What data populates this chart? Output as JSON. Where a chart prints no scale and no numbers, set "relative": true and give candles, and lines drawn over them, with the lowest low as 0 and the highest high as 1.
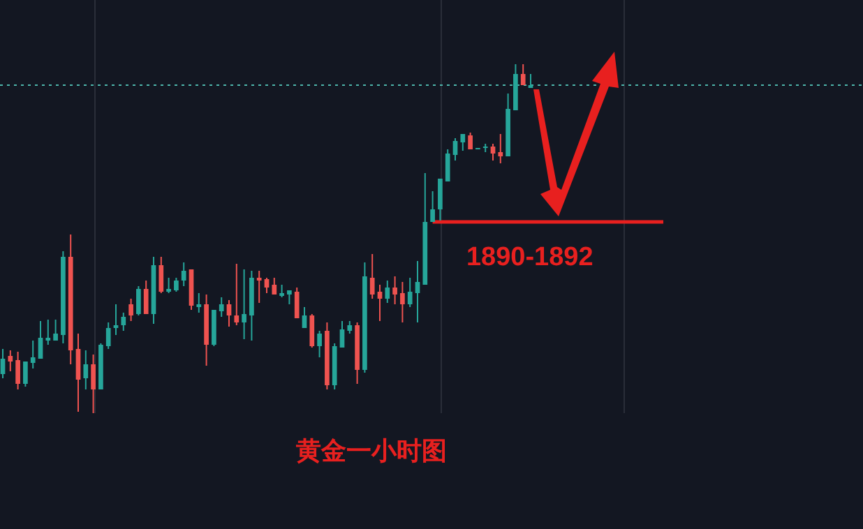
{
  "chart_data": {
    "type": "candlestick",
    "title": "黄金一小时图",
    "relative": true,
    "categories": [
      null,
      null,
      null,
      null,
      null,
      null,
      null,
      null,
      null,
      null,
      null,
      null,
      null,
      null,
      null,
      null,
      null,
      null,
      null,
      null,
      null,
      null,
      null,
      null,
      null,
      null,
      null,
      null,
      null,
      null,
      null,
      null,
      null,
      null,
      null,
      null,
      null,
      null,
      null,
      null,
      null,
      null,
      null,
      null,
      null,
      null,
      null,
      null,
      null,
      null,
      null,
      null,
      null,
      null,
      null,
      null,
      null,
      null,
      null,
      null,
      null,
      null,
      null,
      null,
      null,
      null,
      null,
      null,
      null,
      null,
      null
    ],
    "ohlc": [
      [
        0.112,
        0.184,
        0.1,
        0.156
      ],
      [
        0.164,
        0.18,
        0.12,
        0.148
      ],
      [
        0.152,
        0.176,
        0.068,
        0.084
      ],
      [
        0.084,
        0.148,
        0.076,
        0.148
      ],
      [
        0.144,
        0.208,
        0.128,
        0.16
      ],
      [
        0.156,
        0.264,
        0.156,
        0.216
      ],
      [
        0.208,
        0.268,
        0.196,
        0.216
      ],
      [
        0.208,
        0.268,
        0.208,
        0.228
      ],
      [
        0.224,
        0.464,
        0.2,
        0.448
      ],
      [
        0.448,
        0.512,
        0.14,
        0.18
      ],
      [
        0.184,
        0.228,
        0.004,
        0.096
      ],
      [
        0.1,
        0.18,
        0.068,
        0.14
      ],
      [
        0.14,
        0.168,
        0,
        0.068
      ],
      [
        0.068,
        0.2,
        0.068,
        0.196
      ],
      [
        0.192,
        0.26,
        0.184,
        0.244
      ],
      [
        0.244,
        0.312,
        0.224,
        0.252
      ],
      [
        0.252,
        0.288,
        0.236,
        0.276
      ],
      [
        0.312,
        0.328,
        0.264,
        0.28
      ],
      [
        0.284,
        0.364,
        0.28,
        0.356
      ],
      [
        0.356,
        0.38,
        0.284,
        0.284
      ],
      [
        0.284,
        0.448,
        0.256,
        0.424
      ],
      [
        0.424,
        0.448,
        0.344,
        0.348
      ],
      [
        0.348,
        0.388,
        0.344,
        0.356
      ],
      [
        0.352,
        0.388,
        0.348,
        0.38
      ],
      [
        0.38,
        0.432,
        0.364,
        0.408
      ],
      [
        0.412,
        0.412,
        0.296,
        0.308
      ],
      [
        0.304,
        0.344,
        0.288,
        0.312
      ],
      [
        0.312,
        0.34,
        0.136,
        0.196
      ],
      [
        0.196,
        0.296,
        0.192,
        0.296
      ],
      [
        0.292,
        0.332,
        0.276,
        0.312
      ],
      [
        0.312,
        0.324,
        0.248,
        0.28
      ],
      [
        0.28,
        0.428,
        0.252,
        0.26
      ],
      [
        0.26,
        0.412,
        0.212,
        0.284
      ],
      [
        0.28,
        0.408,
        0.208,
        0.388
      ],
      [
        0.388,
        0.408,
        0.316,
        0.38
      ],
      [
        0.384,
        0.388,
        0.344,
        0.36
      ],
      [
        0.368,
        0.388,
        0.34,
        0.34
      ],
      [
        0.336,
        0.368,
        0.332,
        0.344
      ],
      [
        0.34,
        0.352,
        0.312,
        0.352
      ],
      [
        0.348,
        0.36,
        0.272,
        0.272
      ],
      [
        0.244,
        0.304,
        0.244,
        0.28
      ],
      [
        0.28,
        0.284,
        0.188,
        0.192
      ],
      [
        0.192,
        0.236,
        0.16,
        0.228
      ],
      [
        0.236,
        0.26,
        0.068,
        0.08
      ],
      [
        0.08,
        0.2,
        0.068,
        0.192
      ],
      [
        0.188,
        0.264,
        0.188,
        0.24
      ],
      [
        0.236,
        0.264,
        0.228,
        0.252
      ],
      [
        0.252,
        0.26,
        0.084,
        0.124
      ],
      [
        0.124,
        0.432,
        0.116,
        0.392
      ],
      [
        0.388,
        0.456,
        0.328,
        0.34
      ],
      [
        0.348,
        0.368,
        0.264,
        0.328
      ],
      [
        0.328,
        0.38,
        0.316,
        0.36
      ],
      [
        0.36,
        0.392,
        0.312,
        0.34
      ],
      [
        0.344,
        0.376,
        0.26,
        0.312
      ],
      [
        0.312,
        0.388,
        0.304,
        0.348
      ],
      [
        0.344,
        0.436,
        0.26,
        0.376
      ],
      [
        0.368,
        0.688,
        0.368,
        0.548
      ],
      [
        0.548,
        0.636,
        0.548,
        0.584
      ],
      [
        0.584,
        0.672,
        0.552,
        0.672
      ],
      [
        0.664,
        0.756,
        0.664,
        0.744
      ],
      [
        0.74,
        0.788,
        0.724,
        0.78
      ],
      [
        0.776,
        0.8,
        0.752,
        0.8
      ],
      [
        0.796,
        0.804,
        0.756,
        0.756
      ],
      [
        0.756,
        0.76,
        0.756,
        0.76
      ],
      [
        0.76,
        0.772,
        0.748,
        0.764
      ],
      [
        0.764,
        0.772,
        0.724,
        0.744
      ],
      [
        0.748,
        0.8,
        0.716,
        0.736
      ],
      [
        0.736,
        0.916,
        0.736,
        0.872
      ],
      [
        0.868,
        1,
        0.868,
        0.972
      ],
      [
        0.972,
        1,
        0.94,
        0.94
      ],
      [
        0.932,
        0.972,
        0.932,
        0.94
      ]
    ],
    "colors": [
      "#26a69a",
      "#ef5350",
      "#ef5350",
      "#26a69a",
      "#26a69a",
      "#26a69a",
      "#26a69a",
      "#26a69a",
      "#26a69a",
      "#ef5350",
      "#ef5350",
      "#26a69a",
      "#ef5350",
      "#26a69a",
      "#26a69a",
      "#26a69a",
      "#26a69a",
      "#ef5350",
      "#26a69a",
      "#ef5350",
      "#26a69a",
      "#ef5350",
      "#26a69a",
      "#26a69a",
      "#26a69a",
      "#ef5350",
      "#26a69a",
      "#ef5350",
      "#26a69a",
      "#26a69a",
      "#ef5350",
      "#ef5350",
      "#26a69a",
      "#26a69a",
      "#ef5350",
      "#ef5350",
      "#ef5350",
      "#26a69a",
      "#26a69a",
      "#ef5350",
      "#26a69a",
      "#ef5350",
      "#26a69a",
      "#ef5350",
      "#26a69a",
      "#26a69a",
      "#26a69a",
      "#ef5350",
      "#26a69a",
      "#ef5350",
      "#ef5350",
      "#26a69a",
      "#ef5350",
      "#ef5350",
      "#26a69a",
      "#26a69a",
      "#26a69a",
      "#26a69a",
      "#26a69a",
      "#26a69a",
      "#26a69a",
      "#26a69a",
      "#ef5350",
      "#26a69a",
      "#26a69a",
      "#ef5350",
      "#ef5350",
      "#26a69a",
      "#26a69a",
      "#ef5350",
      "#26a69a"
    ],
    "annotations": [
      "1890-1892"
    ],
    "ref_lines": [
      {
        "axis": "y",
        "value": 0.94,
        "color": "#4db6ac",
        "line_style": "dotted"
      },
      {
        "axis": "y",
        "value": 0.548,
        "color": "#e8201f",
        "line_style": "solid"
      }
    ]
  }
}
